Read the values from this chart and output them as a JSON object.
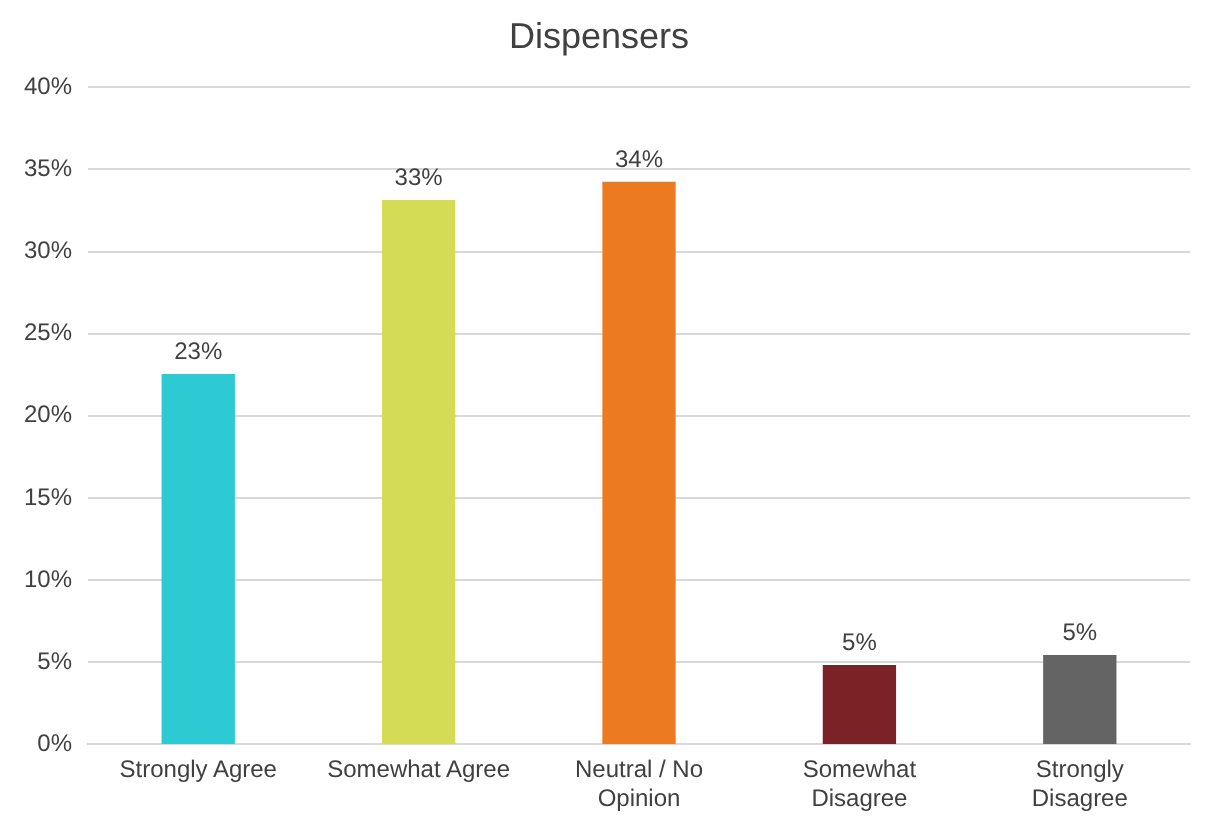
{
  "chart_data": {
    "type": "bar",
    "title": "Dispensers",
    "categories": [
      "Strongly Agree",
      "Somewhat Agree",
      "Neutral / No Opinion",
      "Somewhat Disagree",
      "Strongly Disagree"
    ],
    "values": [
      22.5,
      33.1,
      34.2,
      4.8,
      5.4
    ],
    "colors": [
      "#2ecad4",
      "#d4db55",
      "#ec7a21",
      "#7b2226",
      "#646464"
    ],
    "value_labels": [
      "23%",
      "33%",
      "34%",
      "5%",
      "5%"
    ],
    "ylim": [
      0,
      40
    ],
    "yticks": [
      {
        "value": 0,
        "label": "0%"
      },
      {
        "value": 5,
        "label": "5%"
      },
      {
        "value": 10,
        "label": "10%"
      },
      {
        "value": 15,
        "label": "15%"
      },
      {
        "value": 20,
        "label": "20%"
      },
      {
        "value": 25,
        "label": "25%"
      },
      {
        "value": 30,
        "label": "30%"
      },
      {
        "value": 35,
        "label": "35%"
      },
      {
        "value": 40,
        "label": "40%"
      }
    ],
    "grid": "y",
    "legend": false
  }
}
